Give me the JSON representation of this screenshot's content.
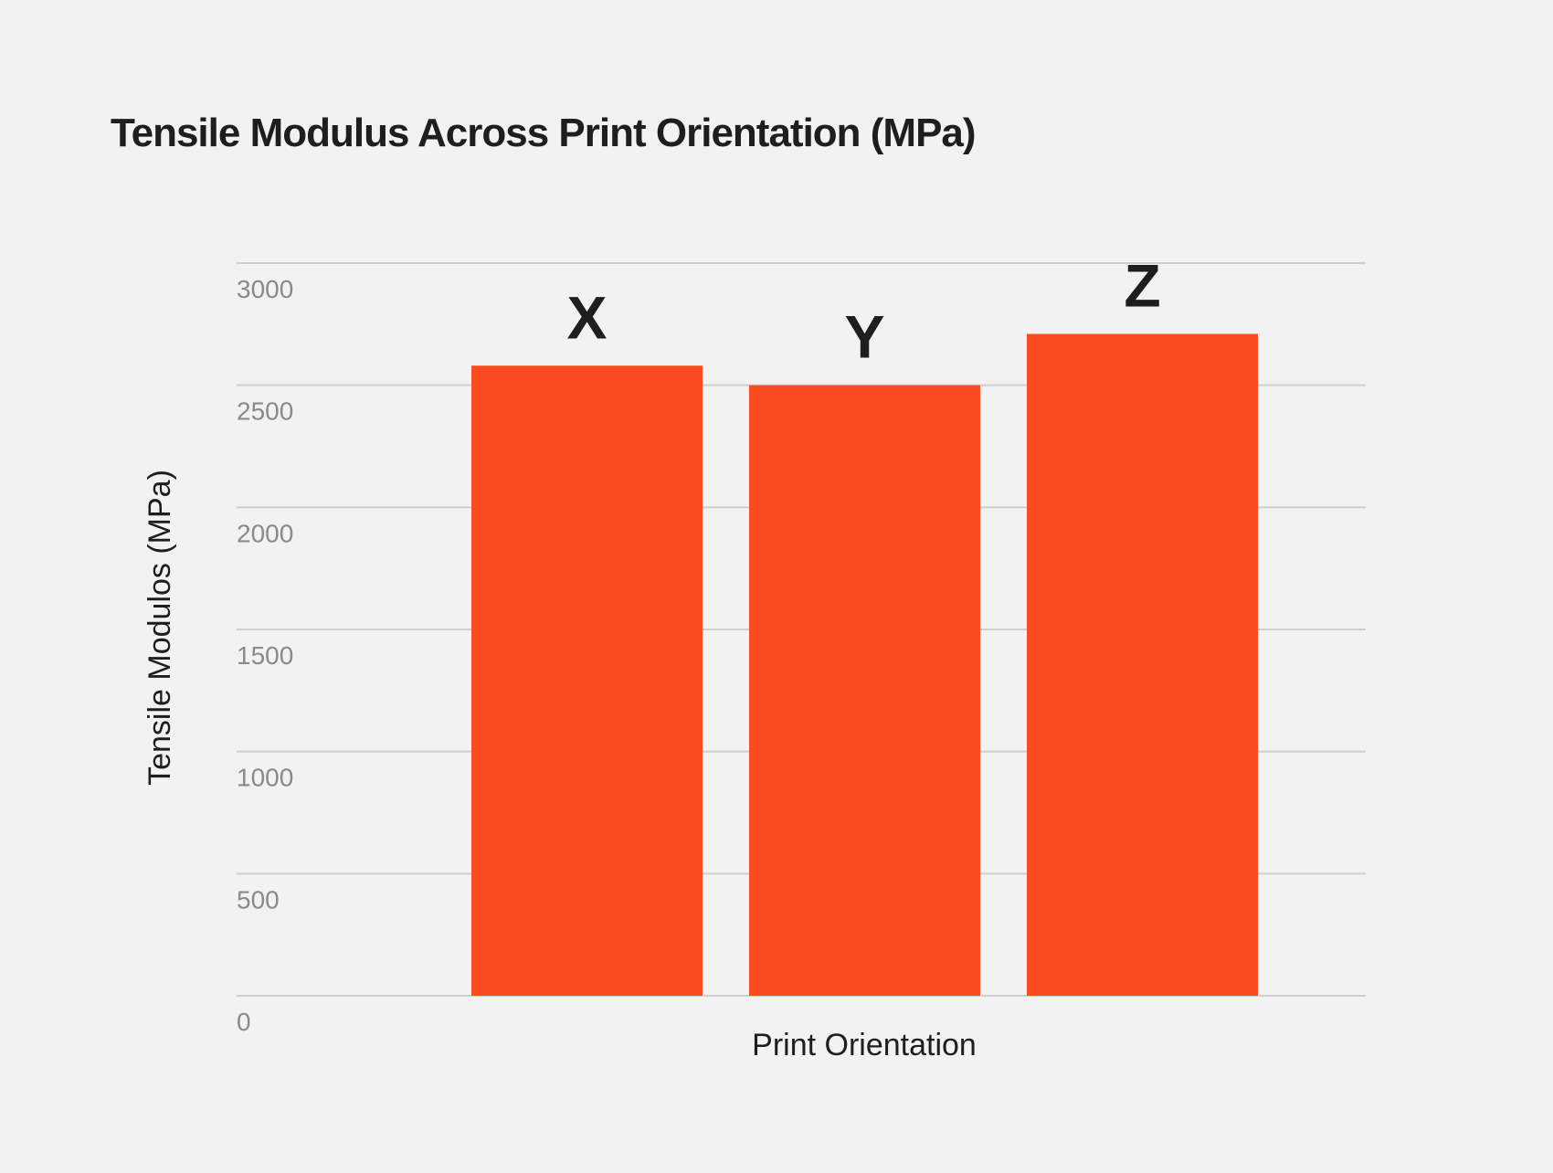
{
  "chart_data": {
    "type": "bar",
    "title": "Tensile Modulus Across Print Orientation (MPa)",
    "xlabel": "Print Orientation",
    "ylabel": "Tensile Modulos (MPa)",
    "categories": [
      "X",
      "Y",
      "Z"
    ],
    "values": [
      2580,
      2500,
      2710
    ],
    "ylim": [
      0,
      3000
    ],
    "yticks": [
      "0",
      "500",
      "1000",
      "1500",
      "2000",
      "2500",
      "3000"
    ],
    "grid": true,
    "legend": "none",
    "bar_color": "#f94b1f"
  }
}
